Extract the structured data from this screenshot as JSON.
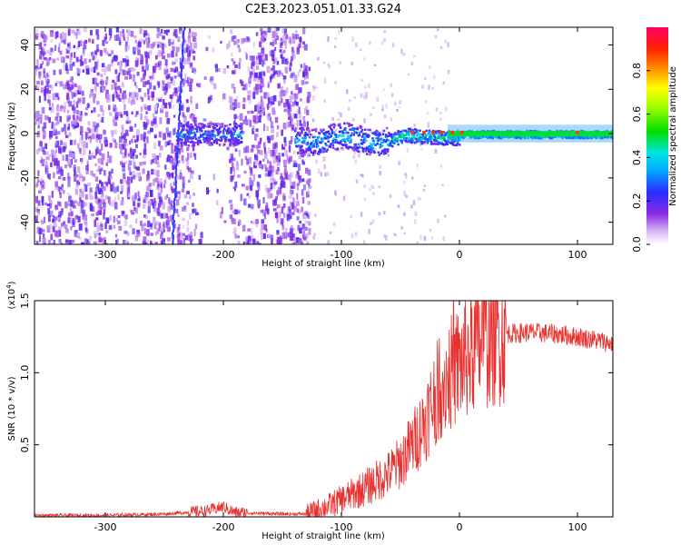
{
  "figure_title": "C2E3.2023.051.01.33.G24",
  "chart_data": [
    {
      "type": "heatmap",
      "title": "C2E3.2023.051.01.33.G24",
      "xlabel": "Height of straight line (km)",
      "ylabel": "Frequency (Hz)",
      "xlim": [
        -360,
        130
      ],
      "ylim": [
        -50,
        48
      ],
      "x_ticks": [
        -300,
        -200,
        -100,
        0,
        100
      ],
      "x_tick_labels": [
        "-300",
        "-200",
        "-100",
        "0",
        "100"
      ],
      "y_ticks": [
        -40,
        -20,
        0,
        20,
        40
      ],
      "y_tick_labels": [
        "-40",
        "-20",
        "0",
        "20",
        "40"
      ],
      "colorbar": {
        "label": "Normalized spectral amplitude",
        "range": [
          0.0,
          1.0
        ],
        "ticks": [
          0.0,
          0.2,
          0.4,
          0.6,
          0.8
        ],
        "tick_labels": [
          "0.0",
          "0.2",
          "0.4",
          "0.6",
          "0.8"
        ]
      },
      "description_series": {
        "noise_region_km": [
          -360,
          -130
        ],
        "signal_centerline_hz": 0,
        "spike_near_km": -240
      }
    },
    {
      "type": "line",
      "xlabel": "Height of straight line (km)",
      "ylabel": "SNR (10 * v/v)",
      "y_scale_label": "(x10",
      "y_scale_exponent": "4",
      "xlim": [
        -360,
        130
      ],
      "ylim": [
        0,
        1.5
      ],
      "x_ticks": [
        -300,
        -200,
        -100,
        0,
        100
      ],
      "x_tick_labels": [
        "-300",
        "-200",
        "-100",
        "0",
        "100"
      ],
      "y_ticks": [
        0.5,
        1.0,
        1.5
      ],
      "y_tick_labels": [
        "0.5",
        "1.0",
        "1.5"
      ],
      "series": [
        {
          "name": "SNR",
          "color": "#e8312f",
          "x": [
            -360,
            -300,
            -250,
            -215,
            -200,
            -190,
            -150,
            -130,
            -120,
            -110,
            -100,
            -90,
            -80,
            -70,
            -60,
            -50,
            -40,
            -30,
            -20,
            -10,
            0,
            10,
            20,
            30,
            40,
            60,
            80,
            100,
            120,
            130
          ],
          "y": [
            0.01,
            0.01,
            0.02,
            0.04,
            0.07,
            0.03,
            0.02,
            0.02,
            0.05,
            0.08,
            0.12,
            0.16,
            0.2,
            0.25,
            0.3,
            0.38,
            0.5,
            0.65,
            0.85,
            0.98,
            1.05,
            1.15,
            1.22,
            1.25,
            1.27,
            1.28,
            1.27,
            1.25,
            1.22,
            1.2
          ]
        }
      ]
    }
  ]
}
